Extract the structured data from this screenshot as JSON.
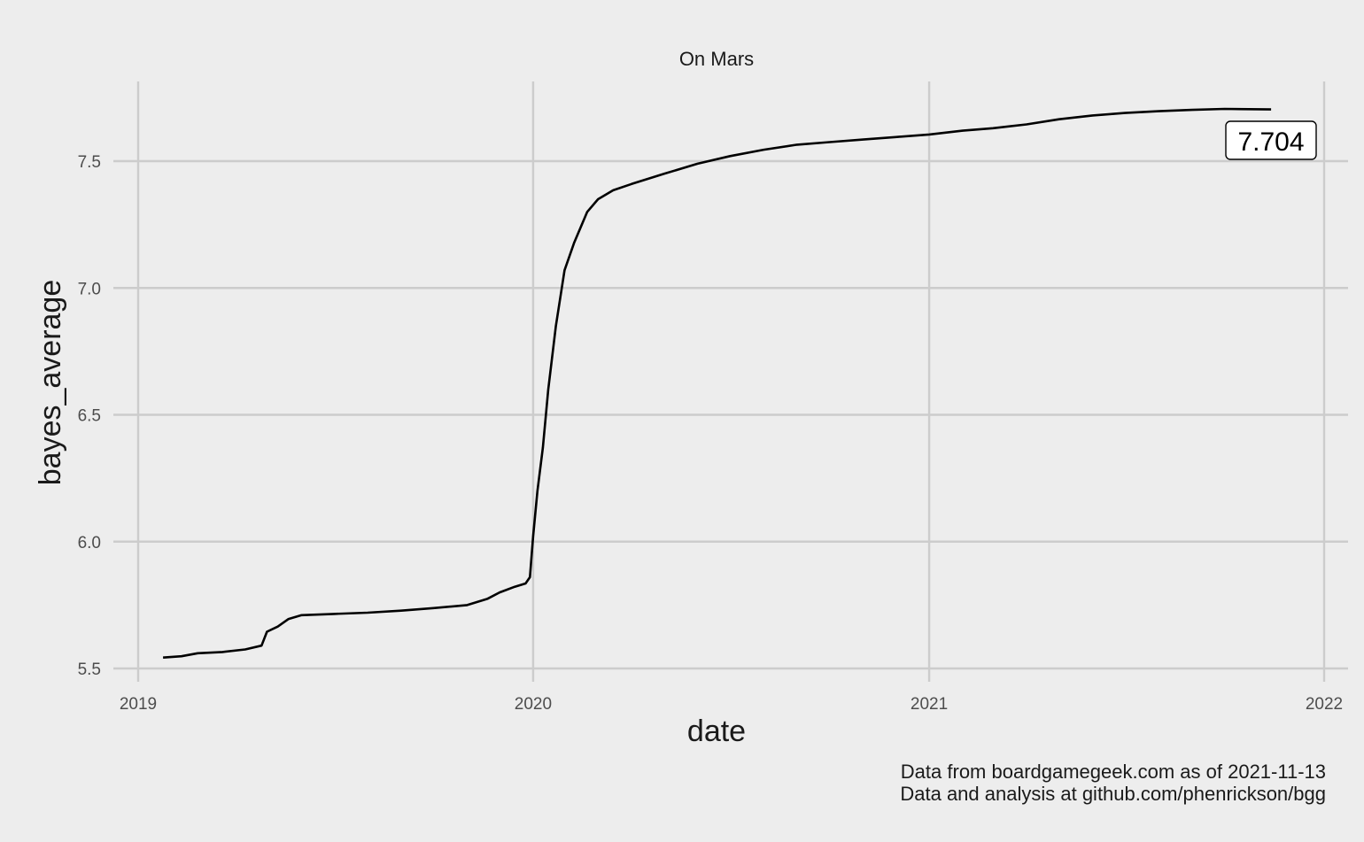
{
  "chart_data": {
    "type": "line",
    "title": "On Mars",
    "xlabel": "date",
    "ylabel": "bayes_average",
    "x_ticks": [
      "2019",
      "2020",
      "2021",
      "2022"
    ],
    "y_ticks": [
      "5.5",
      "6.0",
      "6.5",
      "7.0",
      "7.5"
    ],
    "xlim": [
      "2019-01-01",
      "2022-01-01"
    ],
    "ylim": [
      5.5,
      7.75
    ],
    "grid": true,
    "series": [
      {
        "color": "#000000",
        "points": [
          [
            "2019-01-24",
            5.543
          ],
          [
            "2019-02-10",
            5.548
          ],
          [
            "2019-02-25",
            5.56
          ],
          [
            "2019-03-20",
            5.565
          ],
          [
            "2019-04-10",
            5.575
          ],
          [
            "2019-04-25",
            5.59
          ],
          [
            "2019-04-30",
            5.645
          ],
          [
            "2019-05-10",
            5.665
          ],
          [
            "2019-05-20",
            5.695
          ],
          [
            "2019-06-01",
            5.71
          ],
          [
            "2019-07-01",
            5.715
          ],
          [
            "2019-08-01",
            5.72
          ],
          [
            "2019-09-01",
            5.728
          ],
          [
            "2019-10-01",
            5.738
          ],
          [
            "2019-11-01",
            5.75
          ],
          [
            "2019-11-20",
            5.775
          ],
          [
            "2019-12-01",
            5.8
          ],
          [
            "2019-12-15",
            5.822
          ],
          [
            "2019-12-25",
            5.835
          ],
          [
            "2019-12-29",
            5.86
          ],
          [
            "2020-01-01",
            6.02
          ],
          [
            "2020-01-05",
            6.2
          ],
          [
            "2020-01-10",
            6.37
          ],
          [
            "2020-01-15",
            6.6
          ],
          [
            "2020-01-22",
            6.85
          ],
          [
            "2020-01-30",
            7.07
          ],
          [
            "2020-02-08",
            7.18
          ],
          [
            "2020-02-20",
            7.3
          ],
          [
            "2020-03-01",
            7.35
          ],
          [
            "2020-03-15",
            7.385
          ],
          [
            "2020-04-01",
            7.41
          ],
          [
            "2020-05-01",
            7.45
          ],
          [
            "2020-06-01",
            7.49
          ],
          [
            "2020-07-01",
            7.52
          ],
          [
            "2020-08-01",
            7.545
          ],
          [
            "2020-09-01",
            7.565
          ],
          [
            "2020-10-01",
            7.575
          ],
          [
            "2020-11-01",
            7.585
          ],
          [
            "2020-12-01",
            7.595
          ],
          [
            "2021-01-01",
            7.605
          ],
          [
            "2021-02-01",
            7.62
          ],
          [
            "2021-03-01",
            7.63
          ],
          [
            "2021-04-01",
            7.645
          ],
          [
            "2021-05-01",
            7.665
          ],
          [
            "2021-06-01",
            7.68
          ],
          [
            "2021-07-01",
            7.69
          ],
          [
            "2021-08-01",
            7.697
          ],
          [
            "2021-09-01",
            7.702
          ],
          [
            "2021-10-01",
            7.706
          ],
          [
            "2021-11-13",
            7.704
          ]
        ]
      }
    ],
    "annotation": {
      "text": "7.704",
      "date": "2021-11-13",
      "value": 7.704
    }
  },
  "caption": {
    "line1": "Data from boardgamegeek.com as of 2021-11-13",
    "line2": "Data and analysis at github.com/phenrickson/bgg"
  },
  "colors": {
    "background": "#ededed",
    "grid": "#cccccc",
    "line": "#000000"
  }
}
